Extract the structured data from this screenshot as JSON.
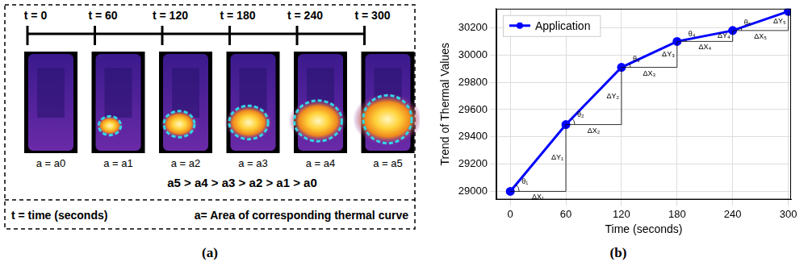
{
  "panel_a": {
    "times": [
      "t = 0",
      "t = 60",
      "t = 120",
      "t = 180",
      "t = 240",
      "t = 300"
    ],
    "areas": [
      "a = a0",
      "a = a1",
      "a = a2",
      "a = a3",
      "a = a4",
      "a = a5"
    ],
    "relation": "a5 > a4 > a3 > a2 > a1 > a0",
    "note_left": "t = time (seconds)",
    "note_right": "a= Area of corresponding thermal curve"
  },
  "captions": [
    "(a)",
    "(b)"
  ],
  "chart_data": {
    "type": "line",
    "x_label": "Time (seconds)",
    "y_label": "Trend of Thermal Values",
    "x": [
      0,
      60,
      120,
      180,
      240,
      300
    ],
    "series": [
      {
        "name": "Application",
        "color": "#0000ff",
        "marker": "circle",
        "line_style": "solid",
        "values": [
          29000,
          29490,
          29910,
          30100,
          30180,
          30320
        ]
      }
    ],
    "xlim": [
      -15,
      303
    ],
    "xticks": [
      0,
      60,
      120,
      180,
      240,
      300
    ],
    "ylim": [
      28940,
      30340
    ],
    "yticks": [
      29000,
      29200,
      29400,
      29600,
      29800,
      30000,
      30200
    ],
    "grid": true,
    "legend": "upper left",
    "annotations": {
      "dx_labels": [
        "ΔX₁",
        "ΔX₂",
        "ΔX₃",
        "ΔX₄",
        "ΔX₅"
      ],
      "dy_labels": [
        "ΔY₁",
        "ΔY₂",
        "ΔY₃",
        "ΔY₄",
        "ΔY₅"
      ],
      "angle_labels": [
        "θ₁",
        "θ₂",
        "θ₃",
        "θ₄",
        "θ₅"
      ]
    }
  }
}
